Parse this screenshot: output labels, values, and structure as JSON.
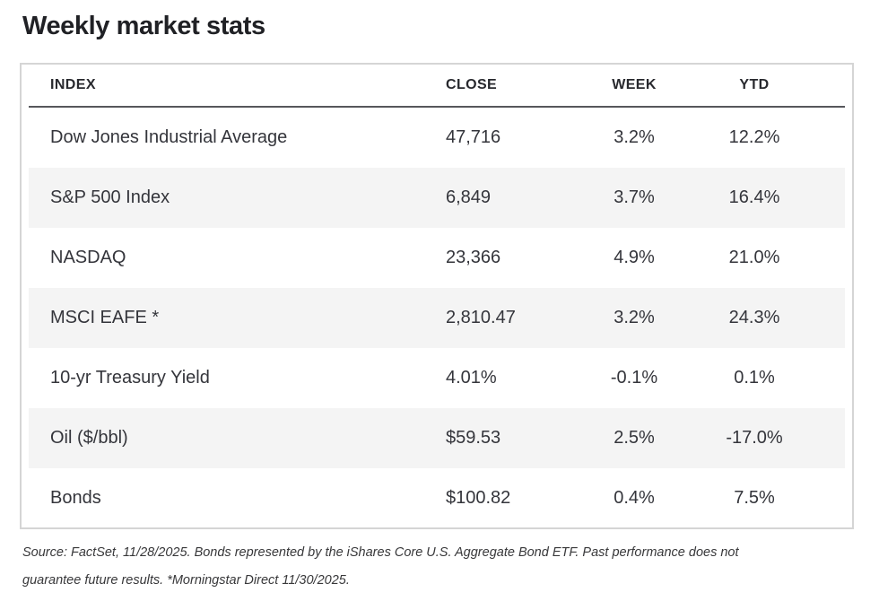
{
  "page": {
    "title": "Weekly market stats"
  },
  "table": {
    "columns": [
      {
        "key": "index",
        "label": "INDEX"
      },
      {
        "key": "close",
        "label": "CLOSE"
      },
      {
        "key": "week",
        "label": "WEEK"
      },
      {
        "key": "ytd",
        "label": "YTD"
      }
    ],
    "rows": [
      {
        "index": "Dow Jones Industrial Average",
        "close": "47,716",
        "week": "3.2%",
        "ytd": "12.2%"
      },
      {
        "index": "S&P 500 Index",
        "close": "6,849",
        "week": "3.7%",
        "ytd": "16.4%"
      },
      {
        "index": "NASDAQ",
        "close": "23,366",
        "week": "4.9%",
        "ytd": "21.0%"
      },
      {
        "index": "MSCI EAFE *",
        "close": "2,810.47",
        "week": "3.2%",
        "ytd": "24.3%"
      },
      {
        "index": "10-yr Treasury Yield",
        "close": "4.01%",
        "week": "-0.1%",
        "ytd": "0.1%"
      },
      {
        "index": "Oil ($/bbl)",
        "close": "$59.53",
        "week": "2.5%",
        "ytd": "-17.0%"
      },
      {
        "index": "Bonds",
        "close": "$100.82",
        "week": "0.4%",
        "ytd": "7.5%"
      }
    ]
  },
  "footer": {
    "line1": "Source: FactSet, 11/28/2025. Bonds represented by the iShares Core U.S. Aggregate Bond ETF. Past performance does not",
    "line2": "guarantee future results. *Morningstar Direct 11/30/2025."
  },
  "colors": {
    "title_text": "#202125",
    "header_text": "#28292e",
    "body_text": "#34353b",
    "stripe_bg": "#f4f4f4",
    "table_border": "#d5d5d5",
    "header_rule": "#56575b",
    "footnote_text": "#38383a"
  }
}
